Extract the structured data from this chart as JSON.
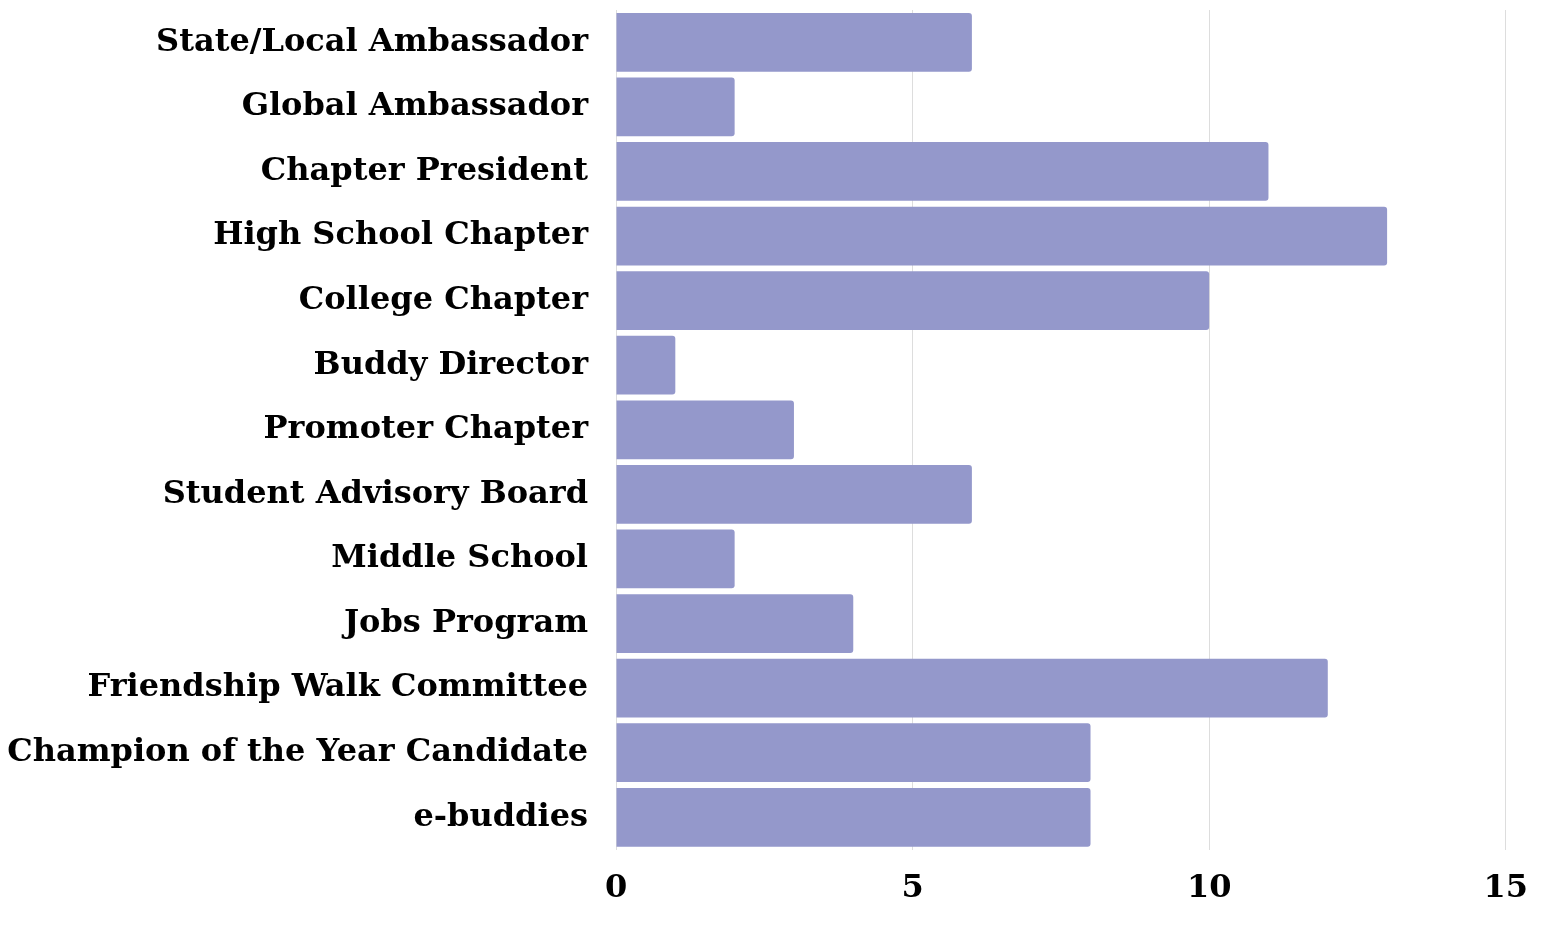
{
  "chart_data": {
    "type": "bar",
    "orientation": "horizontal",
    "categories": [
      "State/Local Ambassador",
      "Global Ambassador",
      "Chapter President",
      "High School Chapter",
      "College Chapter",
      "Buddy Director",
      "Promoter Chapter",
      "Student Advisory Board",
      "Middle School",
      "Jobs Program",
      "Friendship Walk Committee",
      "Champion of the Year Candidate",
      "e-buddies"
    ],
    "values": [
      6,
      2,
      11,
      13,
      10,
      1,
      3,
      6,
      2,
      4,
      12,
      8,
      8
    ],
    "color": "#9498cb",
    "xlim": [
      0,
      15
    ],
    "xticks": [
      0,
      5,
      10,
      15
    ],
    "grid": "x"
  }
}
